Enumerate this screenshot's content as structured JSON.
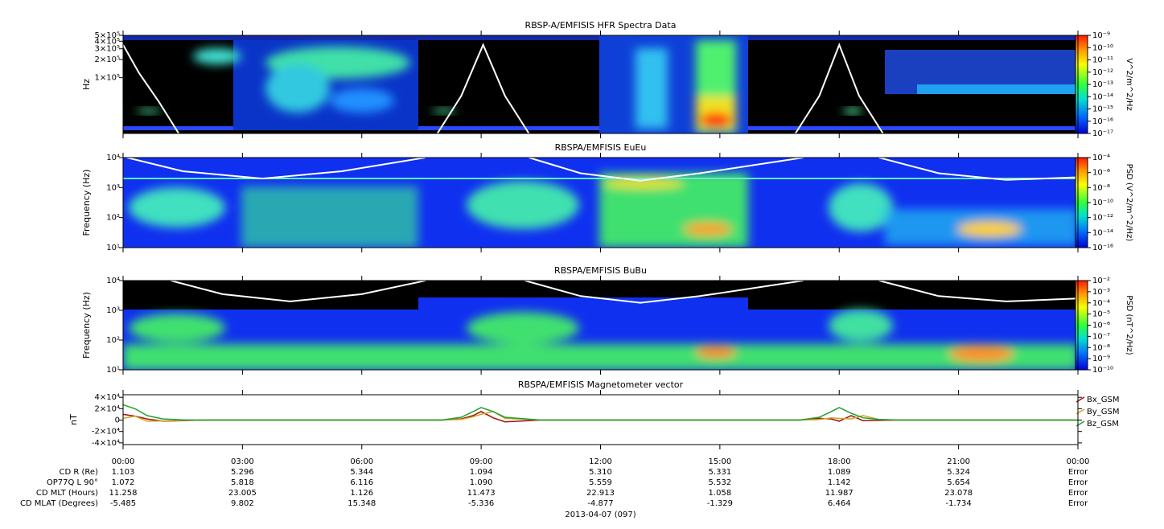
{
  "chart_data": [
    {
      "type": "spectrogram",
      "title": "RBSP-A/EMFISIS  HFR Spectra Data",
      "ylabel": "Hz",
      "log": true,
      "xlim": [
        0,
        24
      ],
      "ylim": [
        12000,
        500000
      ],
      "yticks": [
        {
          "value": 100000,
          "label": "1×10⁵"
        },
        {
          "value": 200000,
          "label": "2×10⁵"
        },
        {
          "value": 300000,
          "label": "3×10⁵"
        },
        {
          "value": 400000,
          "label": "4×10⁵"
        },
        {
          "value": 500000,
          "label": "5×10⁵"
        }
      ],
      "colorbar": {
        "label": "V^2/m^2/Hz",
        "zlim": [
          1e-17,
          1e-09
        ],
        "zticks": [
          {
            "value": 1e-17,
            "label": "10⁻¹⁷"
          },
          {
            "value": 1e-16,
            "label": "10⁻¹⁶"
          },
          {
            "value": 1e-15,
            "label": "10⁻¹⁵"
          },
          {
            "value": 1e-14,
            "label": "10⁻¹⁴"
          },
          {
            "value": 1e-13,
            "label": "10⁻¹³"
          },
          {
            "value": 1e-12,
            "label": "10⁻¹²"
          },
          {
            "value": 1e-11,
            "label": "10⁻¹¹"
          },
          {
            "value": 1e-10,
            "label": "10⁻¹⁰"
          },
          {
            "value": 1e-09,
            "label": "10⁻⁹"
          }
        ]
      },
      "overlay": {
        "color": "#ffffff",
        "x": [
          0,
          0.4,
          0.9,
          1.4,
          5,
          7.9,
          8.5,
          9.05,
          9.6,
          10.2,
          14,
          16.9,
          17.5,
          18,
          18.5,
          19.1
        ],
        "values": [
          350000,
          120000,
          40000,
          12000,
          null,
          12000,
          50000,
          350000,
          50000,
          12000,
          null,
          12000,
          50000,
          350000,
          50000,
          12000
        ]
      }
    },
    {
      "type": "spectrogram",
      "title": "RBSPA/EMFISIS  EuEu",
      "ylabel": "Frequency (Hz)",
      "log": true,
      "xlim": [
        0,
        24
      ],
      "ylim": [
        10,
        10000
      ],
      "yticks": [
        {
          "value": 10,
          "label": "10¹"
        },
        {
          "value": 100,
          "label": "10²"
        },
        {
          "value": 1000,
          "label": "10³"
        },
        {
          "value": 10000,
          "label": "10⁴"
        }
      ],
      "colorbar": {
        "label": "PSD (V^2/m^2/Hz)",
        "zlim": [
          1e-16,
          0.0001
        ],
        "zticks": [
          {
            "value": 1e-16,
            "label": "10⁻¹⁶"
          },
          {
            "value": 1e-14,
            "label": "10⁻¹⁴"
          },
          {
            "value": 1e-12,
            "label": "10⁻¹²"
          },
          {
            "value": 1e-10,
            "label": "10⁻¹⁰"
          },
          {
            "value": 1e-08,
            "label": "10⁻⁸"
          },
          {
            "value": 1e-06,
            "label": "10⁻⁶"
          },
          {
            "value": 0.0001,
            "label": "10⁻⁴"
          }
        ]
      },
      "overlay": {
        "color": "#ffffff",
        "x": [
          0.1,
          1.5,
          3.5,
          5.5,
          7.6,
          9,
          10.2,
          11.5,
          13,
          14.5,
          17.1,
          18,
          19,
          20.5,
          22.2,
          24
        ],
        "values": [
          10000,
          3500,
          2000,
          3500,
          10000,
          null,
          10000,
          3000,
          1700,
          3000,
          10000,
          null,
          10000,
          3000,
          1800,
          2200
        ]
      }
    },
    {
      "type": "spectrogram",
      "title": "RBSPA/EMFISIS  BuBu",
      "ylabel": "Frequency (Hz)",
      "log": true,
      "xlim": [
        0,
        24
      ],
      "ylim": [
        10,
        10000
      ],
      "yticks": [
        {
          "value": 10,
          "label": "10¹"
        },
        {
          "value": 100,
          "label": "10²"
        },
        {
          "value": 1000,
          "label": "10³"
        },
        {
          "value": 10000,
          "label": "10⁴"
        }
      ],
      "colorbar": {
        "label": "PSD (nT^2/Hz)",
        "zlim": [
          1e-10,
          0.01
        ],
        "zticks": [
          {
            "value": 1e-10,
            "label": "10⁻¹⁰"
          },
          {
            "value": 1e-09,
            "label": "10⁻⁹"
          },
          {
            "value": 1e-08,
            "label": "10⁻⁸"
          },
          {
            "value": 1e-07,
            "label": "10⁻⁷"
          },
          {
            "value": 1e-06,
            "label": "10⁻⁶"
          },
          {
            "value": 1e-05,
            "label": "10⁻⁵"
          },
          {
            "value": 0.0001,
            "label": "10⁻⁴"
          },
          {
            "value": 0.001,
            "label": "10⁻³"
          },
          {
            "value": 0.01,
            "label": "10⁻²"
          }
        ]
      },
      "overlay": {
        "color": "#ffffff",
        "x": [
          1.2,
          2.5,
          4.2,
          6,
          7.6,
          9,
          10.1,
          11.5,
          13,
          14.5,
          17.1,
          18,
          19,
          20.5,
          22.2,
          24
        ],
        "values": [
          10000,
          3500,
          2000,
          3500,
          10000,
          null,
          10000,
          3000,
          1800,
          3000,
          10000,
          null,
          10000,
          3000,
          2000,
          2500
        ]
      }
    },
    {
      "type": "line",
      "title": "RBSPA/EMFISIS  Magnetometer vector",
      "ylabel": "nT",
      "xlim": [
        0,
        24
      ],
      "ylim": [
        -43000,
        44500
      ],
      "yticks": [
        {
          "value": 40000,
          "label": "4×10⁴"
        },
        {
          "value": 20000,
          "label": "2×10⁴"
        },
        0,
        {
          "value": -20000,
          "label": "-2×10⁴"
        },
        {
          "value": -40000,
          "label": "-4×10⁴"
        }
      ],
      "xticks": [
        {
          "value": 0,
          "label": "00:00"
        },
        {
          "value": 3,
          "label": "03:00"
        },
        {
          "value": 6,
          "label": "06:00"
        },
        {
          "value": 9,
          "label": "09:00"
        },
        {
          "value": 12,
          "label": "12:00"
        },
        {
          "value": 15,
          "label": "15:00"
        },
        {
          "value": 18,
          "label": "18:00"
        },
        {
          "value": 21,
          "label": "21:00"
        },
        {
          "value": 24,
          "label": "00:00"
        }
      ],
      "x": [
        0,
        0.3,
        0.6,
        1,
        1.5,
        2,
        8,
        8.5,
        8.8,
        9,
        9.3,
        9.6,
        10.5,
        17,
        17.5,
        17.8,
        18,
        18.3,
        18.6,
        19,
        19.5,
        24
      ],
      "series": [
        {
          "name": "Bx_GSM",
          "color": "#a01010",
          "values": [
            10000,
            7000,
            2000,
            -2000,
            -1000,
            0,
            0,
            2000,
            8000,
            15000,
            4000,
            -3000,
            0,
            0,
            3000,
            2000,
            -2000,
            8000,
            -1000,
            -500,
            0,
            0
          ]
        },
        {
          "name": "By_GSM",
          "color": "#d4a020",
          "values": [
            3000,
            7000,
            -2000,
            -1500,
            -500,
            0,
            0,
            1000,
            6000,
            10000,
            15000,
            3000,
            0,
            0,
            1000,
            4000,
            3000,
            2000,
            8000,
            1000,
            0,
            0
          ]
        },
        {
          "name": "Bz_GSM",
          "color": "#20a030",
          "values": [
            27000,
            20000,
            8000,
            2000,
            500,
            0,
            0,
            5000,
            15000,
            22000,
            15000,
            5000,
            0,
            0,
            5000,
            15000,
            22000,
            12000,
            4000,
            1000,
            0,
            0
          ]
        }
      ]
    }
  ],
  "ephemeris": {
    "row_labels": [
      "CD R (Re)",
      "OP77Q L 90°",
      "CD MLT (Hours)",
      "CD MLAT (Degrees)"
    ],
    "rows": [
      [
        "1.103",
        "5.296",
        "5.344",
        "1.094",
        "5.310",
        "5.331",
        "1.089",
        "5.324",
        "Error"
      ],
      [
        "1.072",
        "5.818",
        "6.116",
        "1.090",
        "5.559",
        "5.532",
        "1.142",
        "5.654",
        "Error"
      ],
      [
        "11.258",
        "23.005",
        "1.126",
        "11.473",
        "22.913",
        "1.058",
        "11.987",
        "23.078",
        "Error"
      ],
      [
        "-5.485",
        "9.802",
        "15.348",
        "-5.336",
        "-4.877",
        "-1.329",
        "6.464",
        "-1.734",
        "Error"
      ]
    ],
    "date": "2013-04-07 (097)"
  }
}
